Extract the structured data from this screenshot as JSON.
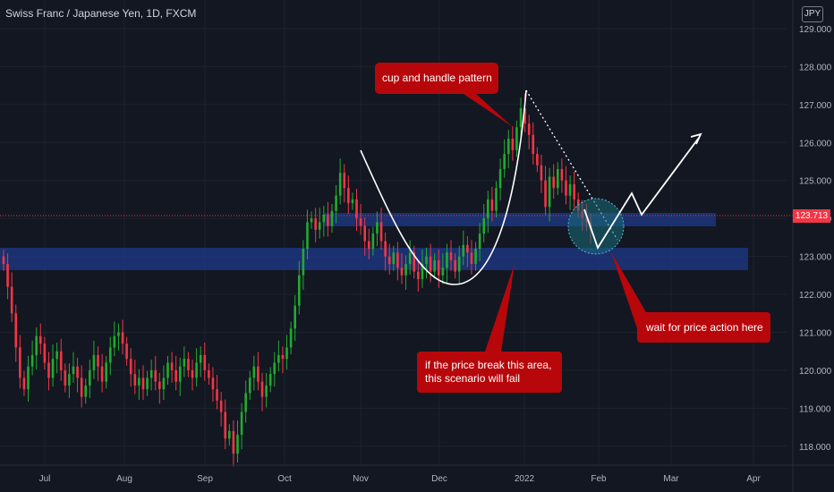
{
  "header": {
    "title": "Swiss Franc / Japanese Yen, 1D, FXCM",
    "currency": "JPY"
  },
  "current_price": "123.713",
  "annotations": {
    "cup": "cup and handle pattern",
    "wait": "wait for price action here",
    "fail_line1": "if the price break this area,",
    "fail_line2": "this scenario will fail"
  },
  "colors": {
    "background": "#131722",
    "up": "#26a69a",
    "up_bright": "#22ab2e",
    "down": "#f23645",
    "zone": "#1e3a8a",
    "callout": "#b7070b",
    "text": "#d1d4dc"
  },
  "chart_data": {
    "type": "candlestick",
    "title": "Swiss Franc / Japanese Yen, 1D, FXCM",
    "x_ticks": [
      "Jul",
      "Aug",
      "Sep",
      "Oct",
      "Nov",
      "Dec",
      "2022",
      "Feb",
      "Mar",
      "Apr"
    ],
    "y_ticks": [
      "118.000",
      "119.000",
      "120.000",
      "121.000",
      "122.000",
      "123.000",
      "124.000",
      "125.000",
      "126.000",
      "127.000",
      "128.000",
      "129.000"
    ],
    "ylim": [
      117.5,
      129.4
    ],
    "series_close": [
      122.8,
      122.2,
      121.5,
      120.6,
      119.8,
      119.5,
      120.1,
      120.4,
      120.9,
      120.7,
      120.2,
      119.8,
      120.3,
      120.5,
      120.0,
      119.6,
      119.9,
      120.1,
      119.8,
      119.3,
      119.6,
      120.0,
      120.4,
      120.1,
      119.7,
      120.2,
      120.6,
      120.9,
      121.0,
      120.7,
      120.3,
      119.9,
      119.6,
      119.8,
      119.5,
      119.8,
      120.0,
      119.7,
      119.5,
      119.8,
      120.2,
      120.0,
      119.7,
      120.1,
      120.3,
      120.0,
      119.8,
      120.2,
      120.4,
      120.0,
      119.8,
      119.5,
      119.2,
      118.9,
      118.2,
      118.4,
      117.8,
      118.3,
      118.9,
      119.4,
      119.8,
      120.1,
      119.7,
      119.3,
      119.6,
      119.9,
      120.2,
      120.4,
      120.3,
      120.6,
      121.1,
      121.7,
      122.5,
      123.2,
      123.9,
      124.0,
      123.7,
      123.9,
      124.1,
      123.8,
      124.2,
      124.6,
      125.2,
      124.8,
      124.4,
      124.5,
      124.0,
      123.8,
      123.4,
      123.2,
      123.6,
      123.9,
      123.4,
      123.0,
      122.8,
      123.1,
      122.7,
      122.5,
      122.8,
      123.1,
      122.6,
      122.4,
      122.8,
      123.0,
      122.6,
      122.9,
      122.5,
      122.7,
      123.1,
      122.9,
      122.6,
      123.0,
      123.3,
      123.1,
      122.8,
      123.2,
      123.6,
      124.0,
      124.5,
      124.2,
      124.8,
      125.3,
      125.7,
      126.1,
      125.8,
      126.4,
      126.9,
      126.5,
      126.2,
      125.7,
      125.4,
      125.0,
      124.3,
      125.1,
      124.8,
      125.3,
      125.0,
      124.6,
      124.9,
      124.5,
      124.2,
      124.0,
      123.9,
      123.713
    ]
  }
}
